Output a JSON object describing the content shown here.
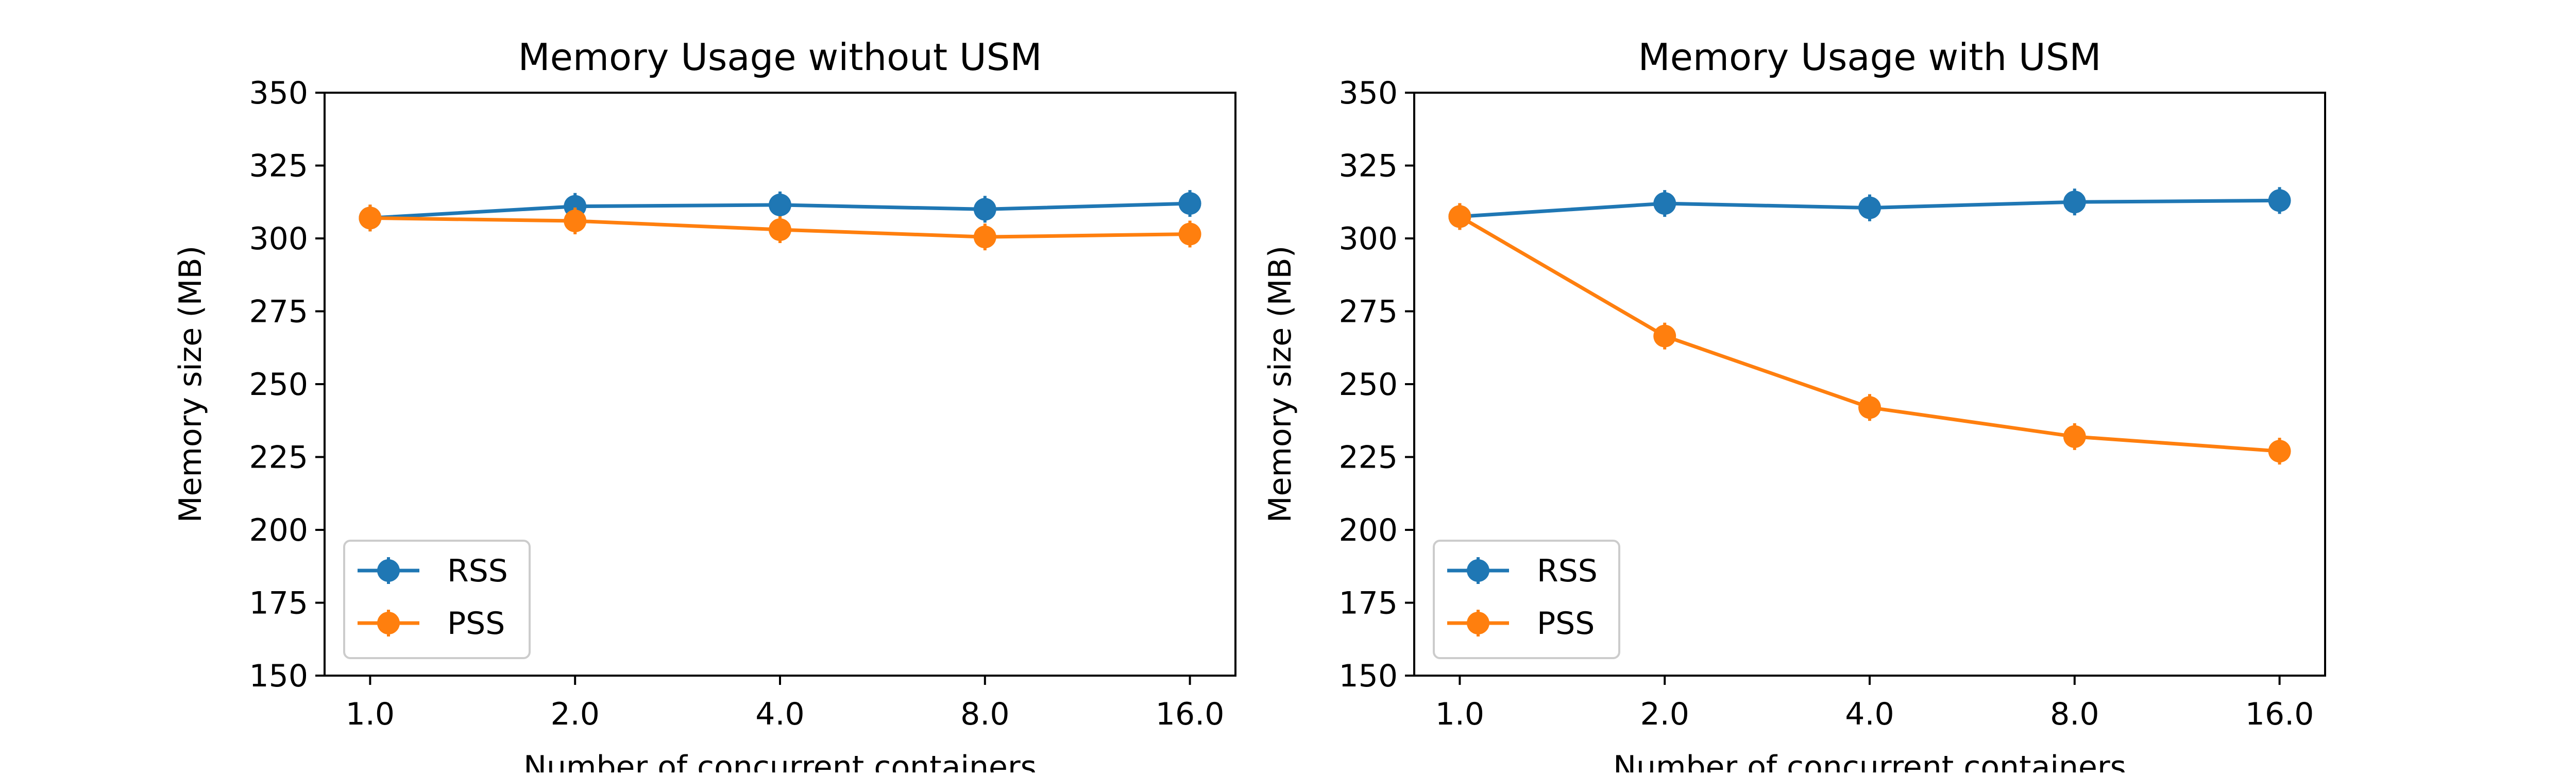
{
  "chart_data": [
    {
      "type": "line",
      "title": "Memory Usage without USM",
      "xlabel": "Number of concurrent containers",
      "ylabel": "Memory size (MB)",
      "categories": [
        "1.0",
        "2.0",
        "4.0",
        "8.0",
        "16.0"
      ],
      "ylim": [
        150,
        350
      ],
      "yticks": [
        "150",
        "175",
        "200",
        "225",
        "250",
        "275",
        "300",
        "325",
        "350"
      ],
      "grid": false,
      "legend_position": "lower-left",
      "error_bars": true,
      "series": [
        {
          "name": "RSS",
          "color": "#1f77b4",
          "values": [
            307,
            311,
            311.5,
            310,
            312
          ]
        },
        {
          "name": "PSS",
          "color": "#ff7f0e",
          "values": [
            307,
            306,
            303,
            300.5,
            301.5
          ]
        }
      ]
    },
    {
      "type": "line",
      "title": "Memory Usage with USM",
      "xlabel": "Number of concurrent containers",
      "ylabel": "Memory size (MB)",
      "categories": [
        "1.0",
        "2.0",
        "4.0",
        "8.0",
        "16.0"
      ],
      "ylim": [
        150,
        350
      ],
      "yticks": [
        "150",
        "175",
        "200",
        "225",
        "250",
        "275",
        "300",
        "325",
        "350"
      ],
      "grid": false,
      "legend_position": "lower-left",
      "error_bars": true,
      "series": [
        {
          "name": "RSS",
          "color": "#1f77b4",
          "values": [
            307.5,
            312,
            310.5,
            312.5,
            313
          ]
        },
        {
          "name": "PSS",
          "color": "#ff7f0e",
          "values": [
            307.5,
            266.5,
            242,
            232,
            227
          ]
        }
      ]
    }
  ]
}
